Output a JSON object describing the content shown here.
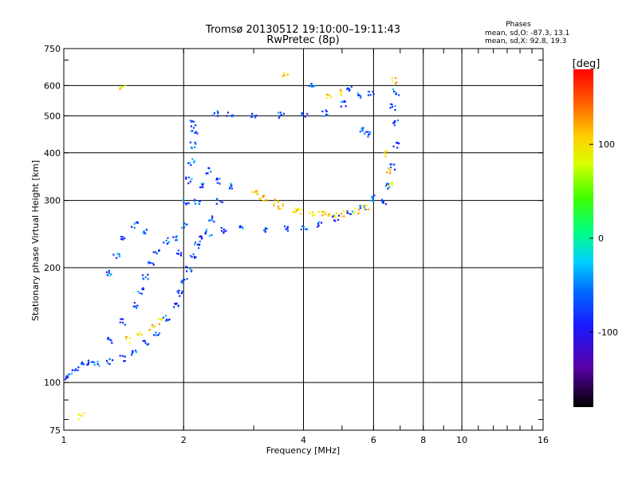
{
  "chart_data": {
    "type": "scatter",
    "title": "Tromsø 20130512 19:10:00–19:11:43",
    "subtitle": "RwPretec (8p)",
    "xlabel": "Frequency [MHz]",
    "ylabel": "Stationary phase Virtual Height [km]",
    "x_scale": "log",
    "y_scale": "log",
    "xlim": [
      1,
      16
    ],
    "ylim": [
      75,
      750
    ],
    "x_ticks": [
      1,
      2,
      4,
      6,
      8,
      10,
      16
    ],
    "x_tick_labels": [
      "1",
      "2",
      "4",
      "6",
      "8",
      "10",
      "16"
    ],
    "y_ticks": [
      75,
      100,
      200,
      300,
      400,
      500,
      600,
      750
    ],
    "y_tick_labels": [
      "75",
      "100",
      "200",
      "300",
      "400",
      "500",
      "600",
      "750"
    ],
    "grid": true,
    "colorbar": {
      "label": "[deg]",
      "range": [
        -180,
        180
      ],
      "ticks": [
        100,
        0,
        -100
      ],
      "tick_labels": [
        "100",
        "0",
        "-100"
      ]
    },
    "stats": {
      "header": "Phases",
      "line_o": "mean, sd,O: -87.3, 13.1",
      "line_x": "mean, sd,X:  92.8, 19.3"
    },
    "series": [
      {
        "mode": "O",
        "phase_mean": -87.3,
        "points": [
          [
            1.02,
            104
          ],
          [
            1.06,
            108
          ],
          [
            1.1,
            112
          ],
          [
            1.15,
            113
          ],
          [
            1.2,
            113
          ],
          [
            1.3,
            114
          ],
          [
            1.4,
            116
          ],
          [
            1.5,
            120
          ],
          [
            1.6,
            127
          ],
          [
            1.7,
            136
          ],
          [
            1.8,
            148
          ],
          [
            1.9,
            160
          ],
          [
            1.95,
            172
          ],
          [
            2.0,
            185
          ],
          [
            2.05,
            200
          ],
          [
            2.1,
            215
          ],
          [
            2.15,
            230
          ],
          [
            2.2,
            240
          ],
          [
            2.3,
            248
          ],
          [
            2.5,
            252
          ],
          [
            2.8,
            255
          ],
          [
            3.2,
            253
          ],
          [
            3.6,
            253
          ],
          [
            4.0,
            256
          ],
          [
            4.4,
            262
          ],
          [
            4.8,
            270
          ],
          [
            5.2,
            280
          ],
          [
            5.6,
            290
          ],
          [
            5.9,
            305
          ],
          [
            1.3,
            130
          ],
          [
            1.4,
            145
          ],
          [
            1.5,
            160
          ],
          [
            1.55,
            175
          ],
          [
            1.6,
            190
          ],
          [
            1.65,
            205
          ],
          [
            1.7,
            220
          ],
          [
            1.8,
            236
          ],
          [
            1.9,
            240
          ],
          [
            1.6,
            250
          ],
          [
            1.5,
            260
          ],
          [
            1.4,
            240
          ],
          [
            1.35,
            215
          ],
          [
            1.3,
            195
          ],
          [
            1.95,
            220
          ],
          [
            2.0,
            260
          ],
          [
            2.02,
            300
          ],
          [
            2.05,
            340
          ],
          [
            2.08,
            380
          ],
          [
            2.1,
            420
          ],
          [
            2.12,
            460
          ],
          [
            2.1,
            480
          ],
          [
            2.15,
            300
          ],
          [
            2.2,
            330
          ],
          [
            2.3,
            360
          ],
          [
            2.45,
            340
          ],
          [
            2.6,
            330
          ],
          [
            2.45,
            300
          ],
          [
            2.35,
            270
          ],
          [
            2.4,
            510
          ],
          [
            2.6,
            505
          ],
          [
            3.0,
            505
          ],
          [
            3.5,
            503
          ],
          [
            4.0,
            502
          ],
          [
            4.5,
            510
          ],
          [
            5.0,
            540
          ],
          [
            5.5,
            565
          ],
          [
            5.9,
            580
          ],
          [
            4.2,
            600
          ],
          [
            5.2,
            590
          ],
          [
            5.6,
            460
          ],
          [
            5.8,
            450
          ],
          [
            6.3,
            300
          ],
          [
            6.5,
            330
          ],
          [
            6.7,
            370
          ],
          [
            6.8,
            420
          ],
          [
            6.75,
            480
          ],
          [
            6.7,
            530
          ],
          [
            6.8,
            580
          ]
        ]
      },
      {
        "mode": "X",
        "phase_mean": 92.8,
        "points": [
          [
            3.0,
            320
          ],
          [
            3.2,
            305
          ],
          [
            3.5,
            290
          ],
          [
            3.8,
            283
          ],
          [
            4.2,
            278
          ],
          [
            4.6,
            276
          ],
          [
            5.0,
            278
          ],
          [
            5.4,
            283
          ],
          [
            5.7,
            289
          ],
          [
            3.1,
            310
          ],
          [
            3.4,
            298
          ],
          [
            3.9,
            282
          ],
          [
            4.4,
            277
          ],
          [
            4.8,
            277
          ],
          [
            1.45,
            130
          ],
          [
            1.55,
            135
          ],
          [
            1.65,
            140
          ],
          [
            1.75,
            145
          ],
          [
            6.4,
            400
          ],
          [
            6.5,
            360
          ],
          [
            6.6,
            330
          ],
          [
            4.6,
            560
          ],
          [
            5.0,
            580
          ],
          [
            1.4,
            600
          ],
          [
            1.1,
            82
          ],
          [
            3.6,
            640
          ],
          [
            6.7,
            620
          ]
        ]
      }
    ]
  }
}
